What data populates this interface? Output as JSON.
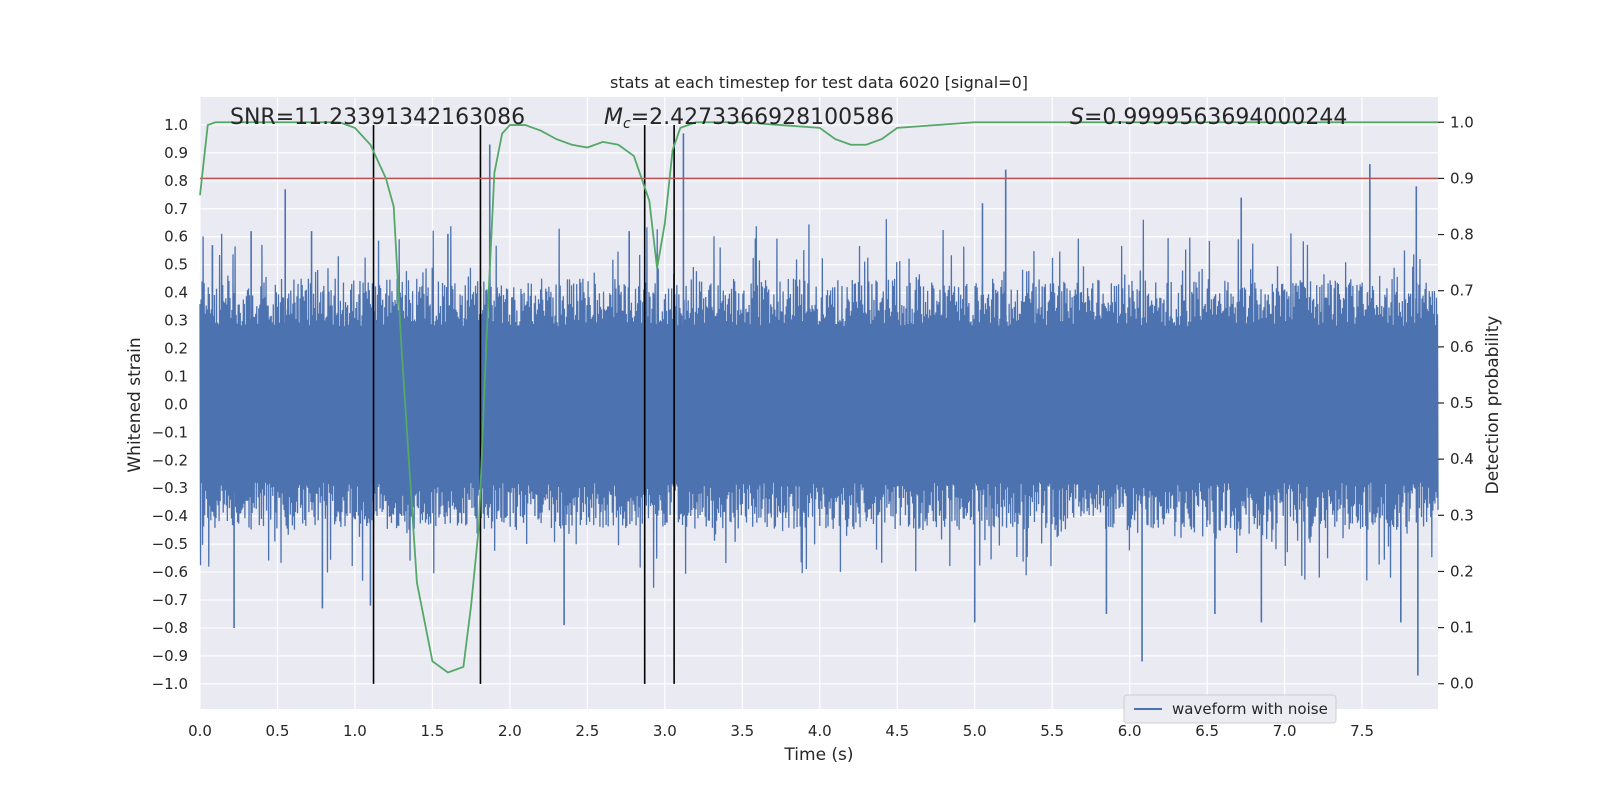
{
  "chart_data": {
    "type": "line",
    "title": "stats at each timestep for test data 6020 [signal=0]",
    "xlabel": "Time (s)",
    "ylabel": "Whitened strain",
    "y2label": "Detection probability",
    "xlim": [
      0.0,
      7.99
    ],
    "ylim": [
      -1.09,
      1.1
    ],
    "y2lim": [
      -0.045,
      1.045
    ],
    "xticks": [
      0.0,
      0.5,
      1.0,
      1.5,
      2.0,
      2.5,
      3.0,
      3.5,
      4.0,
      4.5,
      5.0,
      5.5,
      6.0,
      6.5,
      7.0,
      7.5
    ],
    "xtick_labels": [
      "0.0",
      "0.5",
      "1.0",
      "1.5",
      "2.0",
      "2.5",
      "3.0",
      "3.5",
      "4.0",
      "4.5",
      "5.0",
      "5.5",
      "6.0",
      "6.5",
      "7.0",
      "7.5"
    ],
    "yticks": [
      1.0,
      0.9,
      0.8,
      0.7,
      0.6,
      0.5,
      0.4,
      0.3,
      0.2,
      0.1,
      0.0,
      -0.1,
      -0.2,
      -0.3,
      -0.4,
      -0.5,
      -0.6,
      -0.7,
      -0.8,
      -0.9,
      -1.0
    ],
    "ytick_labels": [
      "1.0",
      "0.9",
      "0.8",
      "0.7",
      "0.6",
      "0.5",
      "0.4",
      "0.3",
      "0.2",
      "0.1",
      "0.0",
      "−0.1",
      "−0.2",
      "−0.3",
      "−0.4",
      "−0.5",
      "−0.6",
      "−0.7",
      "−0.8",
      "−0.9",
      "−1.0"
    ],
    "y2ticks": [
      1.0,
      0.9,
      0.8,
      0.7,
      0.6,
      0.5,
      0.4,
      0.3,
      0.2,
      0.1,
      0.0
    ],
    "y2tick_labels": [
      "1.0",
      "0.9",
      "0.8",
      "0.7",
      "0.6",
      "0.5",
      "0.4",
      "0.3",
      "0.2",
      "0.1",
      "0.0"
    ],
    "annotations": {
      "snr": "SNR=11.233913421630​86",
      "mc_symbol": "M",
      "mc_sub": "c",
      "mc_value": "=2.4273366928100586",
      "s_symbol": "S",
      "s_value": "=0.9999563694000244"
    },
    "waveform": {
      "name": "waveform with noise",
      "color": "#4c72b0",
      "typical_range": [
        -0.45,
        0.45
      ],
      "spikes": [
        {
          "t": 0.55,
          "v": 0.77
        },
        {
          "t": 0.08,
          "v": 0.57
        },
        {
          "t": 0.33,
          "v": 0.62
        },
        {
          "t": 0.72,
          "v": 0.62
        },
        {
          "t": 1.87,
          "v": 0.93
        },
        {
          "t": 1.6,
          "v": 0.61
        },
        {
          "t": 2.77,
          "v": 0.62
        },
        {
          "t": 3.12,
          "v": 0.97
        },
        {
          "t": 5.2,
          "v": 0.84
        },
        {
          "t": 5.05,
          "v": 0.72
        },
        {
          "t": 6.72,
          "v": 0.74
        },
        {
          "t": 7.55,
          "v": 0.86
        },
        {
          "t": 7.85,
          "v": 0.78
        },
        {
          "t": 0.22,
          "v": -0.8
        },
        {
          "t": 0.79,
          "v": -0.73
        },
        {
          "t": 2.35,
          "v": -0.79
        },
        {
          "t": 5.0,
          "v": -0.78
        },
        {
          "t": 5.85,
          "v": -0.75
        },
        {
          "t": 6.08,
          "v": -0.92
        },
        {
          "t": 6.55,
          "v": -0.75
        },
        {
          "t": 6.85,
          "v": -0.78
        },
        {
          "t": 7.75,
          "v": -0.78
        },
        {
          "t": 7.86,
          "v": -0.97
        },
        {
          "t": 1.1,
          "v": -0.72
        }
      ]
    },
    "probability": {
      "color": "#55a868",
      "t": [
        0.0,
        0.05,
        0.1,
        0.2,
        0.3,
        0.5,
        0.7,
        0.9,
        1.0,
        1.1,
        1.2,
        1.25,
        1.3,
        1.4,
        1.5,
        1.6,
        1.7,
        1.75,
        1.8,
        1.85,
        1.9,
        1.95,
        2.0,
        2.1,
        2.2,
        2.3,
        2.4,
        2.5,
        2.6,
        2.7,
        2.8,
        2.9,
        2.95,
        3.0,
        3.05,
        3.1,
        3.2,
        3.3,
        3.5,
        4.0,
        4.1,
        4.2,
        4.3,
        4.4,
        4.5,
        5.0,
        6.0,
        7.0,
        7.99
      ],
      "p": [
        0.87,
        0.995,
        1.0,
        1.0,
        1.0,
        1.0,
        1.0,
        1.0,
        0.99,
        0.96,
        0.9,
        0.85,
        0.6,
        0.18,
        0.04,
        0.02,
        0.03,
        0.14,
        0.28,
        0.62,
        0.91,
        0.98,
        0.995,
        0.995,
        0.985,
        0.97,
        0.96,
        0.955,
        0.965,
        0.96,
        0.94,
        0.86,
        0.74,
        0.82,
        0.95,
        0.99,
        1.0,
        1.0,
        1.0,
        0.99,
        0.97,
        0.96,
        0.96,
        0.97,
        0.99,
        1.0,
        1.0,
        1.0,
        1.0
      ]
    },
    "threshold": {
      "value": 0.9,
      "axis": "right",
      "color": "#c44e52"
    },
    "vertical_lines": [
      1.12,
      1.81,
      2.87,
      3.06
    ]
  }
}
